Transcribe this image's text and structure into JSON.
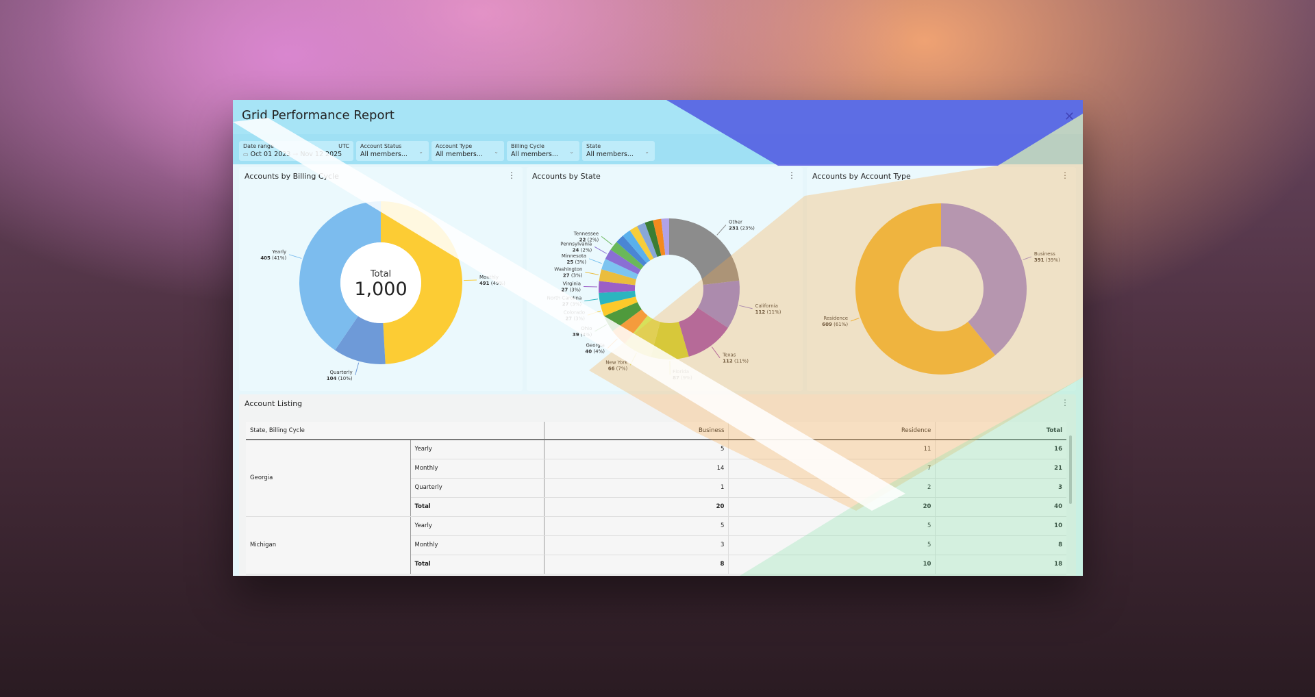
{
  "window": {
    "title": "Grid Performance Report",
    "close_icon": "close-icon"
  },
  "filters": {
    "date_range": {
      "label": "Date range",
      "timezone": "UTC",
      "start": "Oct 01 2023",
      "arrow": "→",
      "end": "Nov 12 2025"
    },
    "items": [
      {
        "label": "Account Status",
        "value": "All members..."
      },
      {
        "label": "Account Type",
        "value": "All members..."
      },
      {
        "label": "Billing Cycle",
        "value": "All members..."
      },
      {
        "label": "State",
        "value": "All members..."
      }
    ]
  },
  "panels": {
    "billing": "Accounts by Billing Cycle",
    "state": "Accounts by State",
    "type": "Accounts by Account Type",
    "listing": "Account Listing",
    "menu_icon": "⋮"
  },
  "chart_data": [
    {
      "type": "pie",
      "title": "Accounts by Billing Cycle",
      "donut": true,
      "center_label": "Total",
      "center_value": "1,000",
      "slices": [
        {
          "label": "Monthly",
          "value": 491,
          "pct": "49%",
          "color": "#fccc34"
        },
        {
          "label": "Quarterly",
          "value": 104,
          "pct": "10%",
          "color": "#6e9ad8"
        },
        {
          "label": "Yearly",
          "value": 405,
          "pct": "41%",
          "color": "#7cbcee"
        }
      ]
    },
    {
      "type": "pie",
      "title": "Accounts by State",
      "donut": true,
      "slices": [
        {
          "label": "Other",
          "value": 231,
          "pct": "23%",
          "color": "#8c8c8c"
        },
        {
          "label": "California",
          "value": 112,
          "pct": "11%",
          "color": "#8b7fd9"
        },
        {
          "label": "Texas",
          "value": 112,
          "pct": "11%",
          "color": "#9a4fbb"
        },
        {
          "label": "Florida",
          "value": 87,
          "pct": "9%",
          "color": "#c9d634"
        },
        {
          "label": "New York",
          "value": 66,
          "pct": "7%",
          "color": "#d7e05a"
        },
        {
          "label": "Georgia",
          "value": 40,
          "pct": "4%",
          "color": "#f59b3c"
        },
        {
          "label": "Ohio",
          "value": 39,
          "pct": "4%",
          "color": "#4f9a3c"
        },
        {
          "label": "Colorado",
          "value": 27,
          "pct": "3%",
          "color": "#fcc92a"
        },
        {
          "label": "North Carolina",
          "value": 27,
          "pct": "3%",
          "color": "#2bb5bf"
        },
        {
          "label": "Virginia",
          "value": 27,
          "pct": "3%",
          "color": "#9b5fc6"
        },
        {
          "label": "Washington",
          "value": 27,
          "pct": "3%",
          "color": "#eabd3d"
        },
        {
          "label": "Minnesota",
          "value": 25,
          "pct": "3%",
          "color": "#7cc4f0"
        },
        {
          "label": "Pennsylvania",
          "value": 24,
          "pct": "2%",
          "color": "#8a6fd4"
        },
        {
          "label": "Tennessee",
          "value": 22,
          "pct": "2%",
          "color": "#6ab85a"
        },
        {
          "label": "",
          "value": 20,
          "color": "#4a86d4"
        },
        {
          "label": "",
          "value": 20,
          "color": "#5ab0ec"
        },
        {
          "label": "",
          "value": 19,
          "color": "#f7cd3a"
        },
        {
          "label": "",
          "value": 19,
          "color": "#88a7d8"
        },
        {
          "label": "",
          "value": 19,
          "color": "#3b7d33"
        },
        {
          "label": "",
          "value": 19,
          "color": "#f48a1e"
        },
        {
          "label": "",
          "value": 18,
          "color": "#b0a2e8"
        }
      ]
    },
    {
      "type": "pie",
      "title": "Accounts by Account Type",
      "donut": true,
      "slices": [
        {
          "label": "Business",
          "value": 391,
          "pct": "39%",
          "color": "#9a8fdc"
        },
        {
          "label": "Residence",
          "value": 609,
          "pct": "61%",
          "color": "#ebb93c"
        }
      ]
    }
  ],
  "table": {
    "headers": [
      "State, Billing Cycle",
      "Business",
      "Residence",
      "Total"
    ],
    "groups": [
      {
        "state": "Georgia",
        "rows": [
          [
            "Yearly",
            "5",
            "11",
            "16"
          ],
          [
            "Monthly",
            "14",
            "7",
            "21"
          ],
          [
            "Quarterly",
            "1",
            "2",
            "3"
          ],
          [
            "Total",
            "20",
            "20",
            "40"
          ]
        ]
      },
      {
        "state": "Michigan",
        "rows": [
          [
            "Yearly",
            "5",
            "5",
            "10"
          ],
          [
            "Monthly",
            "3",
            "5",
            "8"
          ],
          [
            "Total",
            "8",
            "10",
            "18"
          ]
        ]
      }
    ]
  }
}
